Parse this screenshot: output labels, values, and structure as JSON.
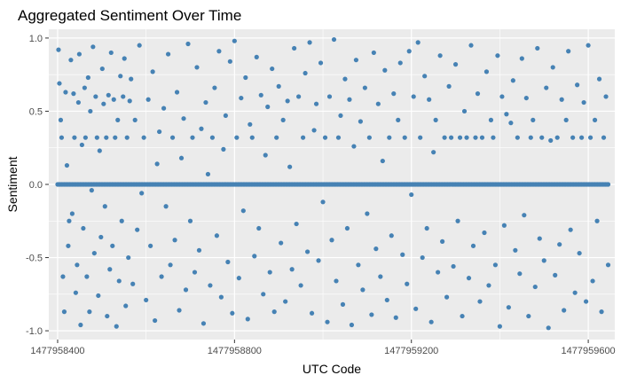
{
  "chart_data": {
    "type": "scatter",
    "title": "Aggregated Sentiment Over Time",
    "xlabel": "UTC Code",
    "ylabel": "Sentiment",
    "xlim": [
      1477958380,
      1477959660
    ],
    "ylim": [
      -1.06,
      1.06
    ],
    "x_ticks": [
      1477958400,
      1477958800,
      1477959200,
      1477959600
    ],
    "x_tick_labels": [
      "1477958400",
      "1477958800",
      "1477959200",
      "1477959600"
    ],
    "y_ticks": [
      -1.0,
      -0.5,
      0.0,
      0.5,
      1.0
    ],
    "y_tick_labels": [
      "-1.0",
      "-0.5",
      "0.0",
      "0.5",
      "1.0"
    ],
    "grid": true,
    "legend": "none",
    "colors": {
      "point": "#4682B4",
      "panel": "#EBEBEB",
      "grid": "#FFFFFF"
    },
    "x_range_data": [
      1477958400,
      1477959645
    ],
    "baseline_y": 0.0,
    "recurring_levels": [
      0.32,
      0.44,
      0.6,
      -0.3,
      -0.6
    ],
    "points": [
      [
        1477958402,
        0.92
      ],
      [
        1477958404,
        0.69
      ],
      [
        1477958407,
        0.44
      ],
      [
        1477958409,
        0.32
      ],
      [
        1477958412,
        -0.63
      ],
      [
        1477958415,
        -0.87
      ],
      [
        1477958418,
        0.63
      ],
      [
        1477958421,
        0.13
      ],
      [
        1477958424,
        -0.42
      ],
      [
        1477958426,
        -0.25
      ],
      [
        1477958430,
        0.85
      ],
      [
        1477958433,
        -0.2
      ],
      [
        1477958436,
        0.62
      ],
      [
        1477958438,
        0.32
      ],
      [
        1477958441,
        -0.74
      ],
      [
        1477958444,
        -0.55
      ],
      [
        1477958447,
        0.56
      ],
      [
        1477958449,
        0.89
      ],
      [
        1477958452,
        -0.96
      ],
      [
        1477958455,
        0.27
      ],
      [
        1477958458,
        -0.3
      ],
      [
        1477958461,
        0.66
      ],
      [
        1477958463,
        0.32
      ],
      [
        1477958466,
        -0.63
      ],
      [
        1477958469,
        0.73
      ],
      [
        1477958472,
        -0.87
      ],
      [
        1477958474,
        0.5
      ],
      [
        1477958477,
        -0.04
      ],
      [
        1477958480,
        0.94
      ],
      [
        1477958483,
        -0.47
      ],
      [
        1477958486,
        0.6
      ],
      [
        1477958489,
        0.32
      ],
      [
        1477958492,
        -0.76
      ],
      [
        1477958495,
        0.23
      ],
      [
        1477958498,
        -0.36
      ],
      [
        1477958501,
        0.79
      ],
      [
        1477958504,
        0.55
      ],
      [
        1477958507,
        -0.15
      ],
      [
        1477958510,
        0.32
      ],
      [
        1477958512,
        -0.9
      ],
      [
        1477958515,
        0.61
      ],
      [
        1477958518,
        -0.58
      ],
      [
        1477958521,
        0.9
      ],
      [
        1477958524,
        -0.42
      ],
      [
        1477958527,
        0.58
      ],
      [
        1477958530,
        0.32
      ],
      [
        1477958533,
        -0.97
      ],
      [
        1477958536,
        0.44
      ],
      [
        1477958539,
        -0.66
      ],
      [
        1477958542,
        0.74
      ],
      [
        1477958545,
        -0.25
      ],
      [
        1477958548,
        0.6
      ],
      [
        1477958551,
        0.86
      ],
      [
        1477958554,
        -0.83
      ],
      [
        1477958557,
        0.32
      ],
      [
        1477958560,
        -0.5
      ],
      [
        1477958563,
        0.57
      ],
      [
        1477958566,
        0.72
      ],
      [
        1477958570,
        -0.68
      ],
      [
        1477958575,
        0.44
      ],
      [
        1477958580,
        -0.31
      ],
      [
        1477958585,
        0.95
      ],
      [
        1477958590,
        -0.06
      ],
      [
        1477958595,
        0.32
      ],
      [
        1477958600,
        -0.79
      ],
      [
        1477958605,
        0.58
      ],
      [
        1477958610,
        -0.42
      ],
      [
        1477958615,
        0.77
      ],
      [
        1477958620,
        -0.93
      ],
      [
        1477958625,
        0.14
      ],
      [
        1477958630,
        0.36
      ],
      [
        1477958635,
        -0.63
      ],
      [
        1477958640,
        0.52
      ],
      [
        1477958645,
        -0.15
      ],
      [
        1477958650,
        0.89
      ],
      [
        1477958655,
        -0.55
      ],
      [
        1477958660,
        0.32
      ],
      [
        1477958665,
        -0.38
      ],
      [
        1477958670,
        0.63
      ],
      [
        1477958675,
        -0.86
      ],
      [
        1477958680,
        0.18
      ],
      [
        1477958685,
        0.45
      ],
      [
        1477958690,
        -0.72
      ],
      [
        1477958695,
        0.96
      ],
      [
        1477958700,
        -0.25
      ],
      [
        1477958705,
        0.32
      ],
      [
        1477958710,
        -0.6
      ],
      [
        1477958715,
        0.8
      ],
      [
        1477958720,
        -0.45
      ],
      [
        1477958725,
        0.38
      ],
      [
        1477958730,
        -0.95
      ],
      [
        1477958735,
        0.56
      ],
      [
        1477958740,
        0.07
      ],
      [
        1477958745,
        -0.69
      ],
      [
        1477958750,
        0.32
      ],
      [
        1477958755,
        0.66
      ],
      [
        1477958760,
        -0.35
      ],
      [
        1477958765,
        0.91
      ],
      [
        1477958770,
        -0.77
      ],
      [
        1477958775,
        0.24
      ],
      [
        1477958780,
        0.47
      ],
      [
        1477958785,
        -0.53
      ],
      [
        1477958790,
        0.84
      ],
      [
        1477958795,
        -0.88
      ],
      [
        1477958800,
        0.98
      ],
      [
        1477958805,
        0.32
      ],
      [
        1477958810,
        -0.64
      ],
      [
        1477958815,
        0.59
      ],
      [
        1477958820,
        -0.18
      ],
      [
        1477958825,
        0.73
      ],
      [
        1477958830,
        -0.92
      ],
      [
        1477958835,
        0.41
      ],
      [
        1477958840,
        0.32
      ],
      [
        1477958845,
        -0.49
      ],
      [
        1477958850,
        0.87
      ],
      [
        1477958855,
        -0.3
      ],
      [
        1477958860,
        0.61
      ],
      [
        1477958865,
        -0.75
      ],
      [
        1477958870,
        0.2
      ],
      [
        1477958875,
        0.53
      ],
      [
        1477958880,
        -0.6
      ],
      [
        1477958885,
        0.79
      ],
      [
        1477958890,
        -0.87
      ],
      [
        1477958895,
        0.32
      ],
      [
        1477958900,
        0.67
      ],
      [
        1477958905,
        -0.4
      ],
      [
        1477958910,
        0.44
      ],
      [
        1477958915,
        -0.8
      ],
      [
        1477958920,
        0.57
      ],
      [
        1477958925,
        0.12
      ],
      [
        1477958930,
        -0.58
      ],
      [
        1477958935,
        0.93
      ],
      [
        1477958940,
        -0.27
      ],
      [
        1477958945,
        0.6
      ],
      [
        1477958950,
        -0.69
      ],
      [
        1477958955,
        0.32
      ],
      [
        1477958960,
        0.76
      ],
      [
        1477958965,
        -0.46
      ],
      [
        1477958970,
        0.97
      ],
      [
        1477958975,
        -0.88
      ],
      [
        1477958980,
        0.37
      ],
      [
        1477958985,
        0.55
      ],
      [
        1477958990,
        -0.52
      ],
      [
        1477958995,
        0.83
      ],
      [
        1477959000,
        -0.12
      ],
      [
        1477959005,
        0.32
      ],
      [
        1477959010,
        -0.94
      ],
      [
        1477959015,
        0.6
      ],
      [
        1477959020,
        -0.38
      ],
      [
        1477959025,
        0.99
      ],
      [
        1477959030,
        -0.66
      ],
      [
        1477959035,
        0.32
      ],
      [
        1477959040,
        0.47
      ],
      [
        1477959045,
        -0.82
      ],
      [
        1477959050,
        0.72
      ],
      [
        1477959055,
        -0.3
      ],
      [
        1477959060,
        0.58
      ],
      [
        1477959065,
        -0.96
      ],
      [
        1477959070,
        0.26
      ],
      [
        1477959075,
        0.85
      ],
      [
        1477959080,
        -0.55
      ],
      [
        1477959085,
        0.43
      ],
      [
        1477959090,
        -0.72
      ],
      [
        1477959095,
        0.66
      ],
      [
        1477959100,
        -0.2
      ],
      [
        1477959105,
        0.32
      ],
      [
        1477959110,
        -0.89
      ],
      [
        1477959115,
        0.9
      ],
      [
        1477959120,
        -0.44
      ],
      [
        1477959125,
        0.55
      ],
      [
        1477959130,
        -0.63
      ],
      [
        1477959135,
        0.16
      ],
      [
        1477959140,
        0.78
      ],
      [
        1477959145,
        -0.79
      ],
      [
        1477959150,
        0.32
      ],
      [
        1477959155,
        -0.35
      ],
      [
        1477959160,
        0.62
      ],
      [
        1477959165,
        -0.91
      ],
      [
        1477959170,
        0.44
      ],
      [
        1477959175,
        0.83
      ],
      [
        1477959180,
        -0.48
      ],
      [
        1477959185,
        0.32
      ],
      [
        1477959190,
        -0.68
      ],
      [
        1477959195,
        0.91
      ],
      [
        1477959200,
        -0.07
      ],
      [
        1477959205,
        0.6
      ],
      [
        1477959210,
        -0.85
      ],
      [
        1477959215,
        0.97
      ],
      [
        1477959220,
        0.32
      ],
      [
        1477959225,
        -0.5
      ],
      [
        1477959230,
        0.74
      ],
      [
        1477959235,
        -0.3
      ],
      [
        1477959240,
        0.58
      ],
      [
        1477959245,
        -0.94
      ],
      [
        1477959250,
        0.22
      ],
      [
        1477959255,
        0.44
      ],
      [
        1477959260,
        -0.6
      ],
      [
        1477959265,
        0.88
      ],
      [
        1477959270,
        -0.39
      ],
      [
        1477959275,
        0.32
      ],
      [
        1477959280,
        -0.77
      ],
      [
        1477959285,
        0.67
      ],
      [
        1477959290,
        0.32
      ],
      [
        1477959295,
        -0.56
      ],
      [
        1477959300,
        0.82
      ],
      [
        1477959305,
        -0.25
      ],
      [
        1477959310,
        0.32
      ],
      [
        1477959315,
        -0.9
      ],
      [
        1477959320,
        0.5
      ],
      [
        1477959325,
        0.32
      ],
      [
        1477959330,
        -0.64
      ],
      [
        1477959335,
        0.95
      ],
      [
        1477959340,
        -0.42
      ],
      [
        1477959345,
        0.32
      ],
      [
        1477959350,
        0.62
      ],
      [
        1477959355,
        -0.8
      ],
      [
        1477959360,
        0.32
      ],
      [
        1477959365,
        -0.33
      ],
      [
        1477959370,
        0.77
      ],
      [
        1477959375,
        -0.69
      ],
      [
        1477959380,
        0.44
      ],
      [
        1477959385,
        0.32
      ],
      [
        1477959390,
        -0.55
      ],
      [
        1477959395,
        0.88
      ],
      [
        1477959400,
        -0.97
      ],
      [
        1477959405,
        0.6
      ],
      [
        1477959410,
        -0.28
      ],
      [
        1477959415,
        0.48
      ],
      [
        1477959420,
        -0.84
      ],
      [
        1477959425,
        0.42
      ],
      [
        1477959430,
        0.71
      ],
      [
        1477959435,
        -0.45
      ],
      [
        1477959440,
        0.32
      ],
      [
        1477959445,
        -0.61
      ],
      [
        1477959450,
        0.86
      ],
      [
        1477959455,
        -0.21
      ],
      [
        1477959460,
        0.59
      ],
      [
        1477959465,
        -0.9
      ],
      [
        1477959470,
        0.32
      ],
      [
        1477959475,
        0.44
      ],
      [
        1477959480,
        -0.7
      ],
      [
        1477959485,
        0.93
      ],
      [
        1477959490,
        -0.37
      ],
      [
        1477959495,
        0.32
      ],
      [
        1477959500,
        -0.52
      ],
      [
        1477959505,
        0.66
      ],
      [
        1477959510,
        -0.98
      ],
      [
        1477959515,
        0.3
      ],
      [
        1477959520,
        0.8
      ],
      [
        1477959525,
        -0.62
      ],
      [
        1477959530,
        0.32
      ],
      [
        1477959535,
        -0.41
      ],
      [
        1477959540,
        0.58
      ],
      [
        1477959545,
        -0.86
      ],
      [
        1477959550,
        0.44
      ],
      [
        1477959555,
        0.91
      ],
      [
        1477959560,
        -0.31
      ],
      [
        1477959565,
        0.32
      ],
      [
        1477959570,
        -0.74
      ],
      [
        1477959575,
        0.68
      ],
      [
        1477959580,
        -0.47
      ],
      [
        1477959585,
        0.32
      ],
      [
        1477959590,
        0.56
      ],
      [
        1477959595,
        -0.8
      ],
      [
        1477959600,
        0.95
      ],
      [
        1477959605,
        0.32
      ],
      [
        1477959610,
        -0.66
      ],
      [
        1477959615,
        0.44
      ],
      [
        1477959620,
        -0.25
      ],
      [
        1477959625,
        0.72
      ],
      [
        1477959630,
        -0.87
      ],
      [
        1477959635,
        0.32
      ],
      [
        1477959640,
        0.6
      ],
      [
        1477959645,
        -0.55
      ]
    ]
  }
}
